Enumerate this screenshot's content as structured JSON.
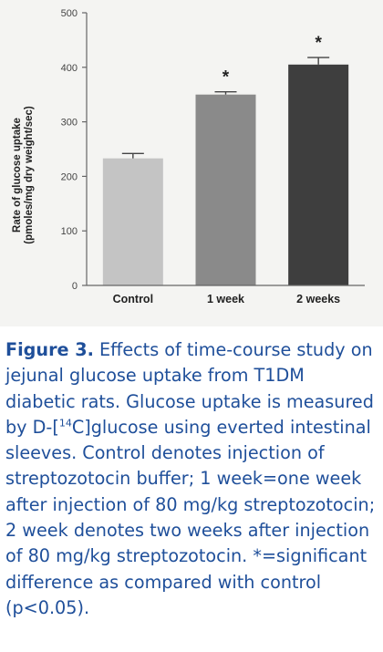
{
  "chart_data": {
    "type": "bar",
    "title": "",
    "xlabel": "",
    "ylabel": "Rate of glucose uptake",
    "ylabel_sub": "(pmoles/mg dry weight/sec)",
    "categories": [
      "Control",
      "1 week",
      "2 weeks"
    ],
    "values": [
      233,
      350,
      405
    ],
    "errors": [
      9,
      5,
      13
    ],
    "significance": [
      "",
      "*",
      "*"
    ],
    "ylim": [
      0,
      500
    ],
    "yticks": [
      "0",
      "100",
      "200",
      "300",
      "400",
      "500"
    ],
    "bar_colors": [
      "#c4c4c4",
      "#8a8a8a",
      "#3e3e3e"
    ],
    "grid": false,
    "legend": "none"
  },
  "caption": {
    "label": "Figure 3.",
    "text_before_sup": "Effects of time-course study on jejunal glucose uptake from T1DM diabetic rats. Glucose uptake is measured by D-[",
    "sup": "14",
    "text_after_sup": "C]glucose using everted intestinal sleeves. Control denotes injection of streptozotocin buffer; 1 week=one week after injection of 80 mg/kg streptozotocin; 2 week denotes two weeks after injection of 80 mg/kg streptozotocin. *=significant difference as compared with control (p<0.05).",
    "color": "#1f4f9a"
  }
}
